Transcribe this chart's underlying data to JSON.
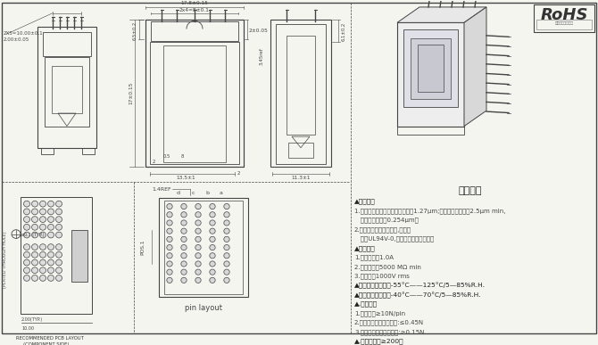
{
  "bg_color": "#f5f5f0",
  "line_color": "#444444",
  "title_tech": "技术要求",
  "tech_lines": [
    [
      "▲表面处理",
      true
    ],
    [
      "1.插针：铜合金，底层镀镍不小于1.27μm;压接区表面镀雾锡2.5μm min,",
      false
    ],
    [
      "   接触区域镀钯金0.254μm。",
      false
    ],
    [
      "2.塑件材料：耐高温材料,米黄色",
      false
    ],
    [
      "   阻燃UL94V-0,颜色均匀无明显差异，",
      false
    ],
    [
      "▲电气性能",
      true
    ],
    [
      "1.额定电流：1.0A",
      false
    ],
    [
      "2.绝缘电阻：5000 MΩ min",
      false
    ],
    [
      "3.耐电压：1000V rms",
      false
    ],
    [
      "▲工作温度及湿度：-55°C——125°C/5—85%R.H.",
      true
    ],
    [
      "▲存储温度及湿度：-40°C——70°C/5—85%R.H.",
      true
    ],
    [
      "▲.机械特性",
      true
    ],
    [
      "1.保持力：≥10N/pin",
      false
    ],
    [
      "2.连接器每个触点插入力:≤0.45N",
      false
    ],
    [
      "3.连接器每个触点拔出力:≥0.15N",
      false
    ],
    [
      "▲.插拔寿命：≥200次",
      true
    ]
  ],
  "rohs_text": "RoHS",
  "rohs_sub": "环保材料使用声明",
  "pin_layout_label": "pin layout",
  "pcb_label_1": "RECOMMENDED PCB LAYOUT",
  "pcb_label_2": "(COMPONENT SIDE)",
  "plated_label": "(PLATED THROUGH HOLE)"
}
